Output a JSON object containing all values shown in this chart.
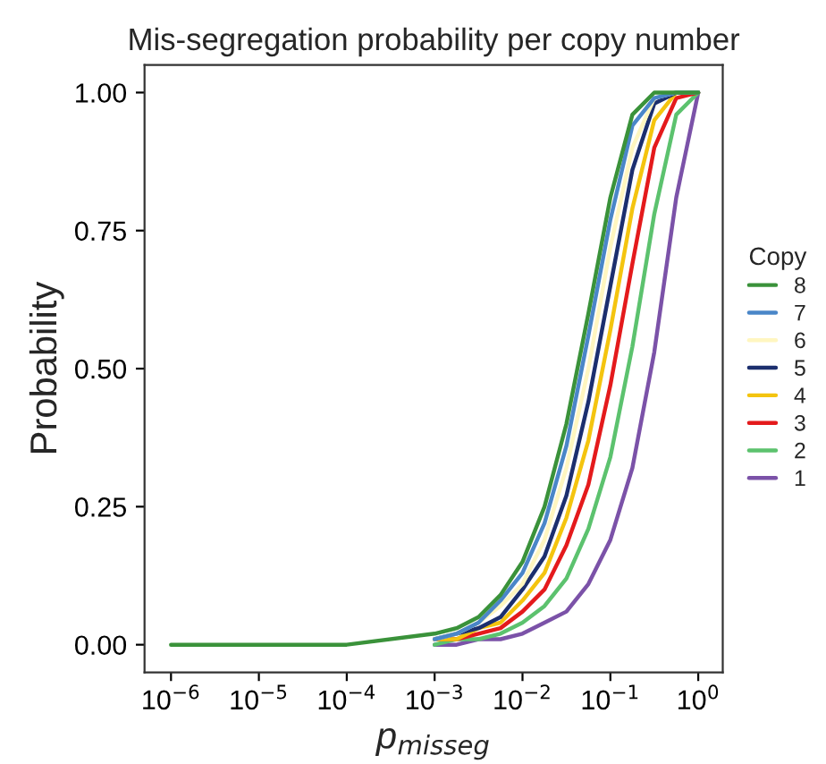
{
  "chart_data": {
    "type": "line",
    "title": "Mis-segregation probability per copy number",
    "xlabel": "p$_{misseg}$",
    "ylabel": "Probability",
    "legend_title": "Copy",
    "legend": "right",
    "grid": false,
    "log": "x",
    "marker": "none",
    "line_style": "solid",
    "x": [
      1e-06,
      0.0001,
      0.001,
      0.00178,
      0.00316,
      0.00562,
      0.01,
      0.0178,
      0.0316,
      0.0562,
      0.1,
      0.178,
      0.316,
      0.562,
      1
    ],
    "xlim": [
      5e-07,
      1.9
    ],
    "xticks": [
      {
        "value": 1e-06,
        "label": "10$^{−6}$"
      },
      {
        "value": 1e-05,
        "label": "10$^{−5}$"
      },
      {
        "value": 0.0001,
        "label": "10$^{−4}$"
      },
      {
        "value": 0.001,
        "label": "10$^{−3}$"
      },
      {
        "value": 0.01,
        "label": "10$^{−2}$"
      },
      {
        "value": 0.1,
        "label": "10$^{−1}$"
      },
      {
        "value": 1,
        "label": "10$^{0}$"
      }
    ],
    "ylim": [
      -0.05,
      1.05
    ],
    "yticks": [
      {
        "value": 0,
        "label": "0.00"
      },
      {
        "value": 0.25,
        "label": "0.25"
      },
      {
        "value": 0.5,
        "label": "0.50"
      },
      {
        "value": 0.75,
        "label": "0.75"
      },
      {
        "value": 1,
        "label": "1.00"
      }
    ],
    "series": [
      {
        "name": "8",
        "color": "#3a923a",
        "values": [
          0,
          0,
          0.02,
          0.03,
          0.05,
          0.09,
          0.15,
          0.25,
          0.4,
          0.6,
          0.81,
          0.96,
          1.0,
          1.0,
          1.0
        ]
      },
      {
        "name": "7",
        "color": "#4a86c8",
        "values": [
          null,
          null,
          0.01,
          0.02,
          0.04,
          0.08,
          0.13,
          0.22,
          0.36,
          0.56,
          0.77,
          0.94,
          0.99,
          1.0,
          1.0
        ]
      },
      {
        "name": "6",
        "color": "#fff6c0",
        "values": [
          null,
          null,
          0.01,
          0.02,
          0.04,
          0.07,
          0.11,
          0.19,
          0.32,
          0.5,
          0.72,
          0.9,
          0.99,
          1.0,
          1.0
        ]
      },
      {
        "name": "5",
        "color": "#1c2f6e",
        "values": [
          null,
          null,
          0.01,
          0.02,
          0.03,
          0.05,
          0.1,
          0.16,
          0.27,
          0.44,
          0.65,
          0.86,
          0.98,
          1.0,
          1.0
        ]
      },
      {
        "name": "4",
        "color": "#f4c40f",
        "values": [
          null,
          null,
          0.01,
          0.01,
          0.03,
          0.04,
          0.08,
          0.13,
          0.23,
          0.37,
          0.57,
          0.79,
          0.95,
          1.0,
          1.0
        ]
      },
      {
        "name": "3",
        "color": "#e41a1c",
        "values": [
          null,
          null,
          0.01,
          0.01,
          0.02,
          0.03,
          0.06,
          0.1,
          0.18,
          0.29,
          0.47,
          0.69,
          0.9,
          0.99,
          1.0
        ]
      },
      {
        "name": "2",
        "color": "#5cc26e",
        "values": [
          null,
          null,
          0,
          0.01,
          0.01,
          0.02,
          0.04,
          0.07,
          0.12,
          0.21,
          0.34,
          0.54,
          0.78,
          0.96,
          1.0
        ]
      },
      {
        "name": "1",
        "color": "#7b52a8",
        "values": [
          null,
          null,
          0,
          0,
          0.01,
          0.01,
          0.02,
          0.04,
          0.06,
          0.11,
          0.19,
          0.32,
          0.53,
          0.81,
          1.0
        ]
      }
    ]
  }
}
